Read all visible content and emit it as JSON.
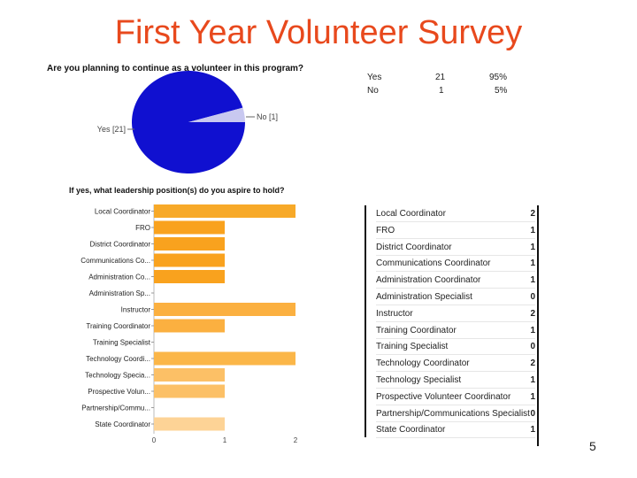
{
  "slide": {
    "title": "First Year Volunteer Survey",
    "page_number": "5"
  },
  "chart_data": [
    {
      "type": "pie",
      "title": "Are you planning to continue as a volunteer in this program?",
      "categories": [
        "Yes",
        "No"
      ],
      "values": [
        21,
        1
      ],
      "percents": [
        "95%",
        "5%"
      ],
      "slice_labels": [
        "Yes [21]",
        "No [1]"
      ],
      "colors": [
        "#1010d0",
        "#c8c8f0"
      ]
    },
    {
      "type": "bar",
      "orientation": "horizontal",
      "title": "If yes, what leadership position(s) do you aspire to hold?",
      "categories": [
        "Local Coordinator",
        "FRO",
        "District Coordinator",
        "Communications Co...",
        "Administration Co...",
        "Administration Sp...",
        "Instructor",
        "Training Coordinator",
        "Training Specialist",
        "Technology Coordi...",
        "Technology Specia...",
        "Prospective Volun...",
        "Partnership/Commu...",
        "State Coordinator"
      ],
      "values": [
        2,
        1,
        1,
        1,
        1,
        0,
        2,
        1,
        0,
        2,
        1,
        1,
        0,
        1
      ],
      "xticks": [
        "0",
        "1",
        "2"
      ],
      "xlim": [
        0,
        2
      ],
      "colors": [
        "#f7a928",
        "#f9a21e",
        "#f9a21e",
        "#f9a21e",
        "#f9a21e",
        "#f9a21e",
        "#fbb040",
        "#fbb040",
        "#fbb040",
        "#fbb648",
        "#fcc066",
        "#fcc066",
        "#fcc066",
        "#fdd396"
      ]
    }
  ],
  "summary_table_1": {
    "rows": [
      {
        "label": "Yes",
        "count": "21",
        "percent": "95%"
      },
      {
        "label": "No",
        "count": "1",
        "percent": "5%"
      }
    ]
  },
  "summary_table_2": {
    "rows": [
      {
        "label": "Local Coordinator",
        "count": "2"
      },
      {
        "label": "FRO",
        "count": "1"
      },
      {
        "label": "District Coordinator",
        "count": "1"
      },
      {
        "label": "Communications Coordinator",
        "count": "1"
      },
      {
        "label": "Administration Coordinator",
        "count": "1"
      },
      {
        "label": "Administration Specialist",
        "count": "0"
      },
      {
        "label": "Instructor",
        "count": "2"
      },
      {
        "label": "Training Coordinator",
        "count": "1"
      },
      {
        "label": "Training Specialist",
        "count": "0"
      },
      {
        "label": "Technology Coordinator",
        "count": "2"
      },
      {
        "label": "Technology Specialist",
        "count": "1"
      },
      {
        "label": "Prospective Volunteer Coordinator",
        "count": "1"
      },
      {
        "label": "Partnership/Communications Specialist",
        "count": "0"
      },
      {
        "label": "State Coordinator",
        "count": "1"
      }
    ]
  }
}
